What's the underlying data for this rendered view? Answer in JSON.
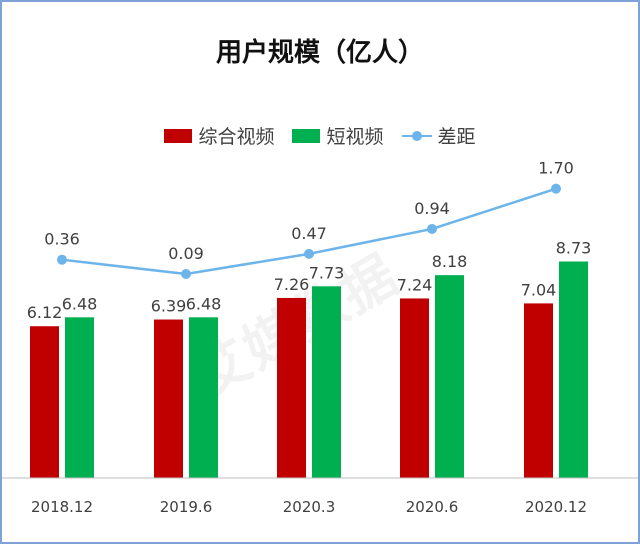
{
  "chart_data": {
    "type": "bar",
    "title": "用户规模（亿人）",
    "categories": [
      "2018.12",
      "2019.6",
      "2020.3",
      "2020.6",
      "2020.12"
    ],
    "series": [
      {
        "name": "综合视频",
        "type": "bar",
        "color": "#c00000",
        "values": [
          6.12,
          6.39,
          7.26,
          7.24,
          7.04
        ]
      },
      {
        "name": "短视频",
        "type": "bar",
        "color": "#00b050",
        "values": [
          6.48,
          6.48,
          7.73,
          8.18,
          8.73
        ]
      },
      {
        "name": "差距",
        "type": "line",
        "color": "#6cb4ea",
        "values": [
          0.36,
          0.09,
          0.47,
          0.94,
          1.7
        ]
      }
    ],
    "value_labels": {
      "综合视频": [
        "6.12",
        "6.39",
        "7.26",
        "7.24",
        "7.04"
      ],
      "短视频": [
        "6.48",
        "6.48",
        "7.73",
        "8.18",
        "8.73"
      ],
      "差距": [
        "0.36",
        "0.09",
        "0.47",
        "0.94",
        "1.70"
      ]
    },
    "legend_position": "top",
    "grid": false
  },
  "watermark_text": "艾媒数据"
}
